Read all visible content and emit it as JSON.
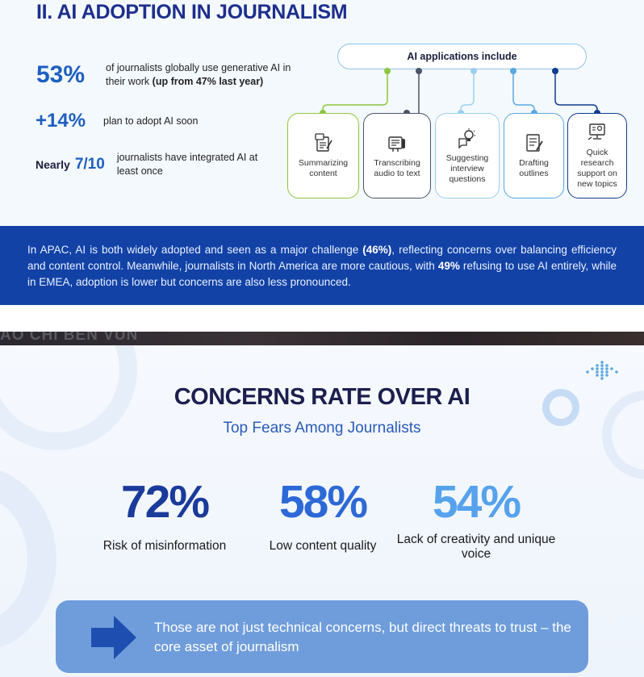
{
  "section_title": "II. AI ADOPTION IN JOURNALISM",
  "stats": [
    {
      "value": "53%",
      "text": "of journalists globally use generative AI in their work",
      "text_bold": "(up from 47% last year)"
    },
    {
      "value": "+14%",
      "text": "plan to adopt AI soon"
    },
    {
      "prefix": "Nearly",
      "value": "7/10",
      "text": "journalists have integrated AI at least once"
    }
  ],
  "applications": {
    "header": "AI applications include",
    "items": [
      {
        "label": "Summarizing content",
        "icon": "document-pen-icon",
        "color": "#8cc63f"
      },
      {
        "label": "Transcribing audio to text",
        "icon": "recorder-icon",
        "color": "#4a5368"
      },
      {
        "label": "Suggesting interview questions",
        "icon": "lightbulb-icon",
        "color": "#9ccfee"
      },
      {
        "label": "Drafting outlines",
        "icon": "notepad-icon",
        "color": "#5aa8e0"
      },
      {
        "label": "Quick research support on new topics",
        "icon": "research-monitor-icon",
        "color": "#0f3c8c"
      }
    ]
  },
  "band": {
    "p1": "In APAC, AI is both widely adopted and seen as a major challenge",
    "b1": "(46%)",
    "p2": ", reflecting concerns over balancing efficiency and content control. Meanwhile, journalists in North America are more cautious, with",
    "b2": "49%",
    "p3": "refusing to use AI entirely, while in EMEA, adoption is lower but concerns are also less pronounced."
  },
  "photo_strip_text": "AO CHI BEN VUN",
  "concerns": {
    "title": "CONCERNS RATE OVER AI",
    "subtitle": "Top Fears Among Journalists",
    "items": [
      {
        "value": "72%",
        "label": "Risk of misinformation",
        "color": "#1a3b9a"
      },
      {
        "value": "58%",
        "label": "Low content quality",
        "color": "#2d69d6"
      },
      {
        "value": "54%",
        "label": "Lack of creativity and unique voice",
        "color": "#56a2ec"
      }
    ]
  },
  "callout": {
    "text": "Those are not just technical concerns, but direct threats to trust – the core asset of journalism",
    "icon": "arrow-right-icon"
  },
  "colors": {
    "primary": "#1d2f8c",
    "band": "#1242a6",
    "callout": "#6f9ddb"
  }
}
